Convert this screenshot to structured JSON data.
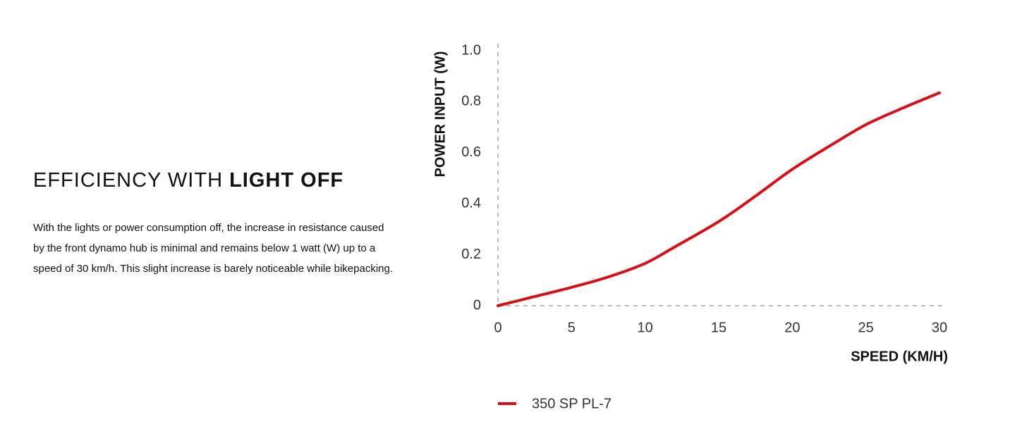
{
  "heading": {
    "light": "EFFICIENCY WITH",
    "bold": "LIGHT OFF"
  },
  "description": "With the lights or power consumption off, the increase in resistance caused by the front dynamo hub is minimal and remains below 1 watt (W) up to a speed of 30 km/h. This slight increase is barely noticeable while bikepacking.",
  "chart_data": {
    "type": "line",
    "x_label": "SPEED (KM/H)",
    "y_label": "POWER INPUT (W)",
    "x": [
      0,
      2.5,
      5,
      7.5,
      10,
      12,
      15,
      17.5,
      20,
      22.5,
      25,
      27.5,
      30
    ],
    "series": [
      {
        "name": "350 SP PL-7",
        "color": "#d4101a",
        "values": [
          0,
          0.036,
          0.072,
          0.113,
          0.166,
          0.23,
          0.33,
          0.43,
          0.535,
          0.625,
          0.71,
          0.775,
          0.835
        ]
      }
    ],
    "xlim": [
      0,
      30
    ],
    "xticks": [
      0,
      5,
      10,
      15,
      20,
      25,
      30
    ],
    "ylim": [
      0,
      1
    ],
    "yticks": [
      0,
      0.2,
      0.4,
      0.6,
      0.8,
      {
        "value": 1,
        "label": "1.0"
      }
    ],
    "grid": false,
    "legend": "bottom"
  }
}
